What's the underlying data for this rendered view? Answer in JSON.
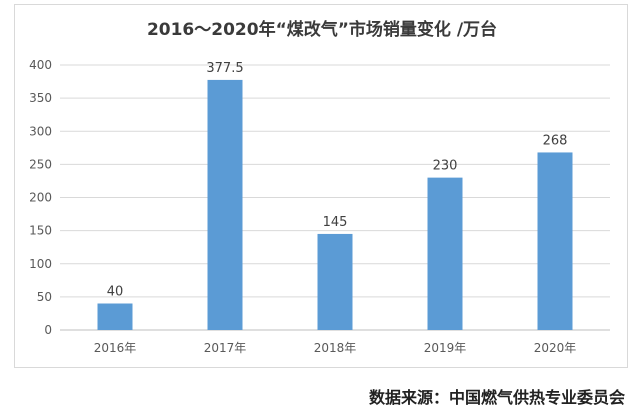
{
  "chart_data": {
    "type": "bar",
    "title": "2016～2020年“煤改气”市场销量变化   /万台",
    "categories": [
      "2016年",
      "2017年",
      "2018年",
      "2019年",
      "2020年"
    ],
    "values": [
      40,
      377.5,
      145,
      230,
      268
    ],
    "data_labels": [
      "40",
      "377.5",
      "145",
      "230",
      "268"
    ],
    "yticks": [
      "0",
      "50",
      "100",
      "150",
      "200",
      "250",
      "300",
      "350",
      "400"
    ],
    "ylim": [
      0,
      400
    ],
    "grid": true,
    "bar_color": "#5b9bd5"
  },
  "source": "数据来源：中国燃气供热专业委员会"
}
